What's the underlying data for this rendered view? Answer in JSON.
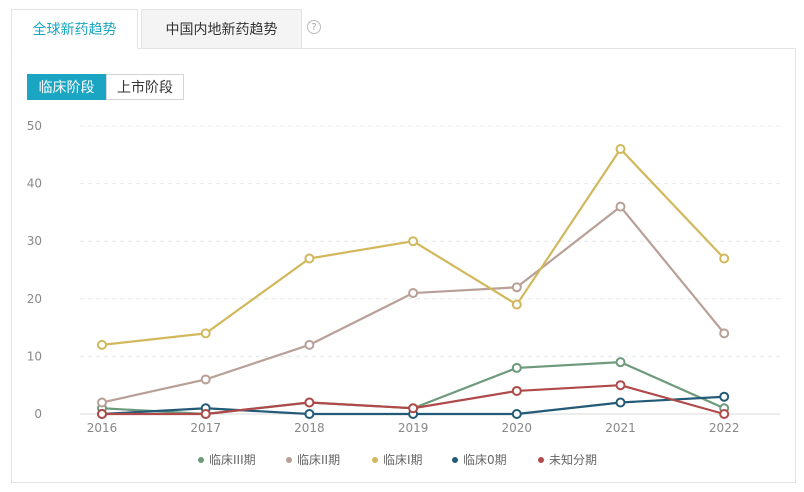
{
  "tabs": [
    {
      "label": "全球新药趋势",
      "active": true
    },
    {
      "label": "中国内地新药趋势",
      "active": false
    }
  ],
  "help_icon": "question-circle-icon",
  "segments": [
    {
      "label": "临床阶段",
      "active": true
    },
    {
      "label": "上市阶段",
      "active": false
    }
  ],
  "chart_data": {
    "type": "line",
    "x": [
      "2016",
      "2017",
      "2018",
      "2019",
      "2020",
      "2021",
      "2022"
    ],
    "ylim": [
      0,
      50
    ],
    "yticks": [
      0,
      10,
      20,
      30,
      40,
      50
    ],
    "grid": true,
    "legend_position": "bottom",
    "series": [
      {
        "name": "临床III期",
        "color": "#6e9a7c",
        "values": [
          1,
          0,
          2,
          1,
          8,
          9,
          1
        ]
      },
      {
        "name": "临床II期",
        "color": "#b9a097",
        "values": [
          2,
          6,
          12,
          21,
          22,
          36,
          14
        ]
      },
      {
        "name": "临床I期",
        "color": "#d2b85c",
        "values": [
          12,
          14,
          27,
          30,
          19,
          46,
          27
        ]
      },
      {
        "name": "临床0期",
        "color": "#225a78",
        "values": [
          0,
          1,
          0,
          0,
          0,
          2,
          3
        ]
      },
      {
        "name": "未知分期",
        "color": "#b04a4a",
        "values": [
          0,
          0,
          2,
          1,
          4,
          5,
          0
        ]
      }
    ]
  }
}
